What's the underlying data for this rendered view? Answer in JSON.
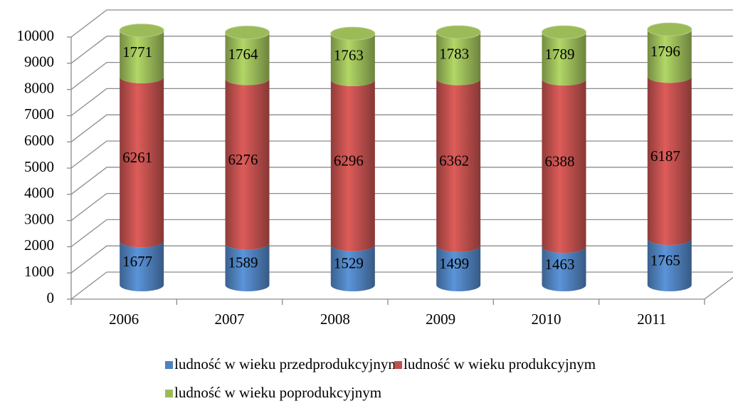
{
  "chart_data": {
    "type": "bar",
    "stacked": true,
    "categories": [
      "2006",
      "2007",
      "2008",
      "2009",
      "2010",
      "2011"
    ],
    "series": [
      {
        "name": "ludność w wieku przedprodukcyjnym",
        "color": "#4f81bd",
        "values": [
          1677,
          1589,
          1529,
          1499,
          1463,
          1765
        ]
      },
      {
        "name": "ludność w wieku produkcyjnym",
        "color": "#c0504d",
        "values": [
          6261,
          6276,
          6296,
          6362,
          6388,
          6187
        ]
      },
      {
        "name": "ludność w wieku poprodukcyjnym",
        "color": "#9bbb59",
        "values": [
          1771,
          1764,
          1763,
          1783,
          1789,
          1796
        ]
      }
    ],
    "ylim": [
      0,
      10000
    ],
    "yticks": [
      0,
      1000,
      2000,
      3000,
      4000,
      5000,
      6000,
      7000,
      8000,
      9000,
      10000
    ],
    "grid": true,
    "legend": "bottom"
  }
}
